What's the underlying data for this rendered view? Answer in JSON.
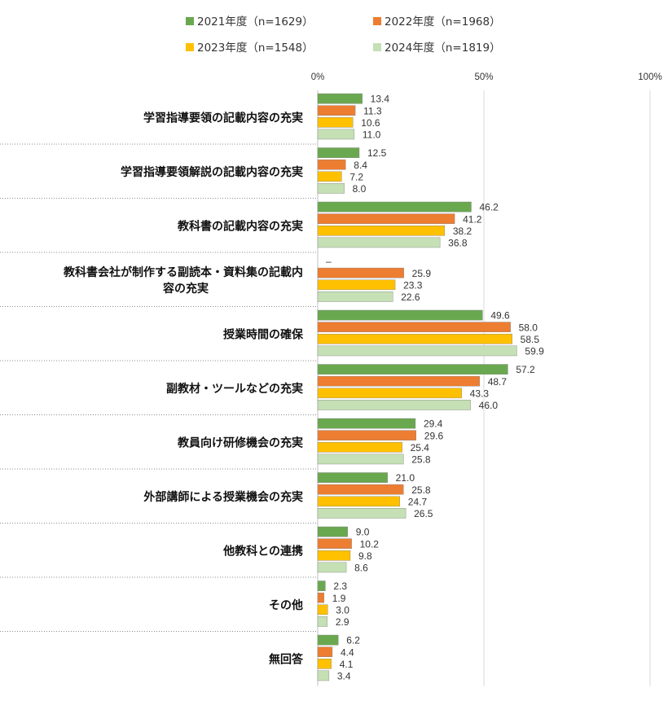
{
  "chart_data": {
    "type": "bar",
    "orientation": "horizontal",
    "xlim": [
      0,
      100
    ],
    "xticks": [
      "0%",
      "50%",
      "100%"
    ],
    "xtick_values": [
      0,
      50,
      100
    ],
    "legend_position": "top",
    "grid": true,
    "categories": [
      [
        "学習指導要領の記載内容の充実"
      ],
      [
        "学習指導要領解説の記載内容の充実"
      ],
      [
        "教科書の記載内容の充実"
      ],
      [
        "教科書会社が制作する副読本・資料集の記載内",
        "容の充実"
      ],
      [
        "授業時間の確保"
      ],
      [
        "副教材・ツールなどの充実"
      ],
      [
        "教員向け研修機会の充実"
      ],
      [
        "外部講師による授業機会の充実"
      ],
      [
        "他教科との連携"
      ],
      [
        "その他"
      ],
      [
        "無回答"
      ]
    ],
    "series": [
      {
        "name": "2021年度（n=1629）",
        "color": "#6aa84f",
        "values": [
          13.4,
          12.5,
          46.2,
          null,
          49.6,
          57.2,
          29.4,
          21.0,
          9.0,
          2.3,
          6.2
        ],
        "labels": [
          "13.4",
          "12.5",
          "46.2",
          "–",
          "49.6",
          "57.2",
          "29.4",
          "21.0",
          "9.0",
          "2.3",
          "6.2"
        ]
      },
      {
        "name": "2022年度（n=1968）",
        "color": "#ed7d31",
        "values": [
          11.3,
          8.4,
          41.2,
          25.9,
          58.0,
          48.7,
          29.6,
          25.8,
          10.2,
          1.9,
          4.4
        ],
        "labels": [
          "11.3",
          "8.4",
          "41.2",
          "25.9",
          "58.0",
          "48.7",
          "29.6",
          "25.8",
          "10.2",
          "1.9",
          "4.4"
        ]
      },
      {
        "name": "2023年度（n=1548）",
        "color": "#ffc000",
        "values": [
          10.6,
          7.2,
          38.2,
          23.3,
          58.5,
          43.3,
          25.4,
          24.7,
          9.8,
          3.0,
          4.1
        ],
        "labels": [
          "10.6",
          "7.2",
          "38.2",
          "23.3",
          "58.5",
          "43.3",
          "25.4",
          "24.7",
          "9.8",
          "3.0",
          "4.1"
        ]
      },
      {
        "name": "2024年度（n=1819）",
        "color": "#c5e0b4",
        "values": [
          11.0,
          8.0,
          36.8,
          22.6,
          59.9,
          46.0,
          25.8,
          26.5,
          8.6,
          2.9,
          3.4
        ],
        "labels": [
          "11.0",
          "8.0",
          "36.8",
          "22.6",
          "59.9",
          "46.0",
          "25.8",
          "26.5",
          "8.6",
          "2.9",
          "3.4"
        ]
      }
    ]
  }
}
